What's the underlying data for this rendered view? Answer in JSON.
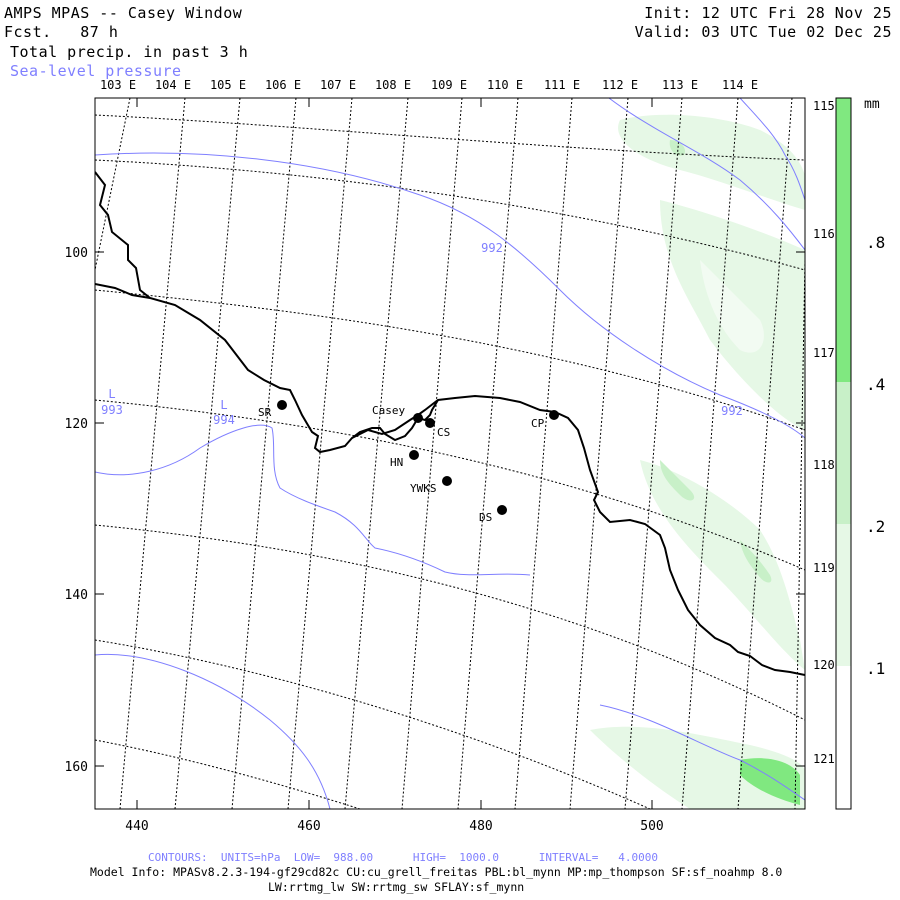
{
  "header": {
    "title": "AMPS MPAS -- Casey Window",
    "fcst_label": "Fcst.",
    "fcst_value": "87 h",
    "field1": "Total precip. in past 3 h",
    "field2": "Sea-level pressure",
    "init": "Init: 12 UTC Fri 28 Nov 25",
    "valid": "Valid: 03 UTC Tue 02 Dec 25"
  },
  "map": {
    "top_lon_labels": [
      "103 E",
      "104 E",
      "105 E",
      "106 E",
      "107 E",
      "108 E",
      "109 E",
      "110 E",
      "111 E",
      "112 E",
      "113 E",
      "114 E"
    ],
    "right_lon_labels": [
      "115 E",
      "116 E",
      "117 E",
      "118 E",
      "119 E",
      "120 E",
      "121 E"
    ],
    "x_ticks": [
      "440",
      "460",
      "480",
      "500"
    ],
    "y_ticks": [
      "100",
      "120",
      "140",
      "160"
    ],
    "isobar_labels": [
      {
        "text": "992"
      },
      {
        "text": "992"
      },
      {
        "text": "L"
      },
      {
        "text": "993"
      },
      {
        "text": "L"
      },
      {
        "text": "994"
      }
    ],
    "stations": [
      {
        "name": "SR"
      },
      {
        "name": "Casey"
      },
      {
        "name": "CS"
      },
      {
        "name": "CP"
      },
      {
        "name": "HN"
      },
      {
        "name": "YWKS"
      },
      {
        "name": "DS"
      }
    ],
    "colors": {
      "isobar": "#7f7fff",
      "coast": "#000000",
      "precip_light": "#e6f8e6",
      "precip_mid": "#c8f0c8",
      "precip_dark": "#80e880"
    }
  },
  "colorbar": {
    "unit": "mm",
    "labels": [
      ".8",
      ".4",
      ".2",
      ".1"
    ]
  },
  "footer": {
    "contours": "CONTOURS:  UNITS=hPa  LOW=  988.00      HIGH=  1000.0      INTERVAL=   4.0000",
    "model_info_1": "Model Info: MPASv8.2.3-194-gf29cd82c CU:cu_grell_freitas PBL:bl_mynn MP:mp_thompson SF:sf_noahmp 8.0",
    "model_info_2": "LW:rrtmg_lw SW:rrtmg_sw SFLAY:sf_mynn"
  }
}
